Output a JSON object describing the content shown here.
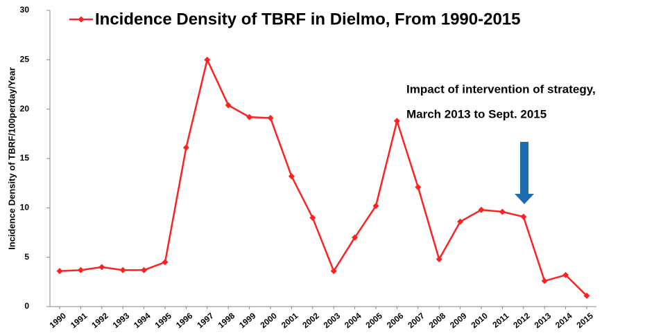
{
  "chart_data": {
    "type": "line",
    "ylabel": "Incidence Density of TBRF/100perday/Year",
    "categories": [
      "1990",
      "1991",
      "1992",
      "1993",
      "1994",
      "1995",
      "1996",
      "1997",
      "1998",
      "1999",
      "2000",
      "2001",
      "2002",
      "2003",
      "2004",
      "2005",
      "2006",
      "2007",
      "2008",
      "2009",
      "2010",
      "2011",
      "2012",
      "2013",
      "2014",
      "2015"
    ],
    "series": [
      {
        "name": "Incidence Density of TBRF in Dielmo, From 1990-2015",
        "color": "#ff2020",
        "values": [
          3.6,
          3.7,
          4.0,
          3.7,
          3.7,
          4.5,
          16.1,
          25.0,
          20.4,
          19.2,
          19.1,
          13.2,
          9.0,
          3.6,
          7.0,
          10.2,
          18.8,
          12.1,
          4.8,
          8.6,
          9.8,
          9.6,
          9.1,
          2.6,
          3.2,
          1.1
        ]
      }
    ],
    "ylim": [
      0,
      30
    ],
    "yticks": [
      0,
      5,
      10,
      15,
      20,
      25,
      30
    ],
    "grid": false,
    "legend": "top",
    "annotations": [
      "Impact of intervention of strategy,",
      "March 2013 to Sept. 2015"
    ],
    "arrow_color": "#1f6bb0"
  }
}
